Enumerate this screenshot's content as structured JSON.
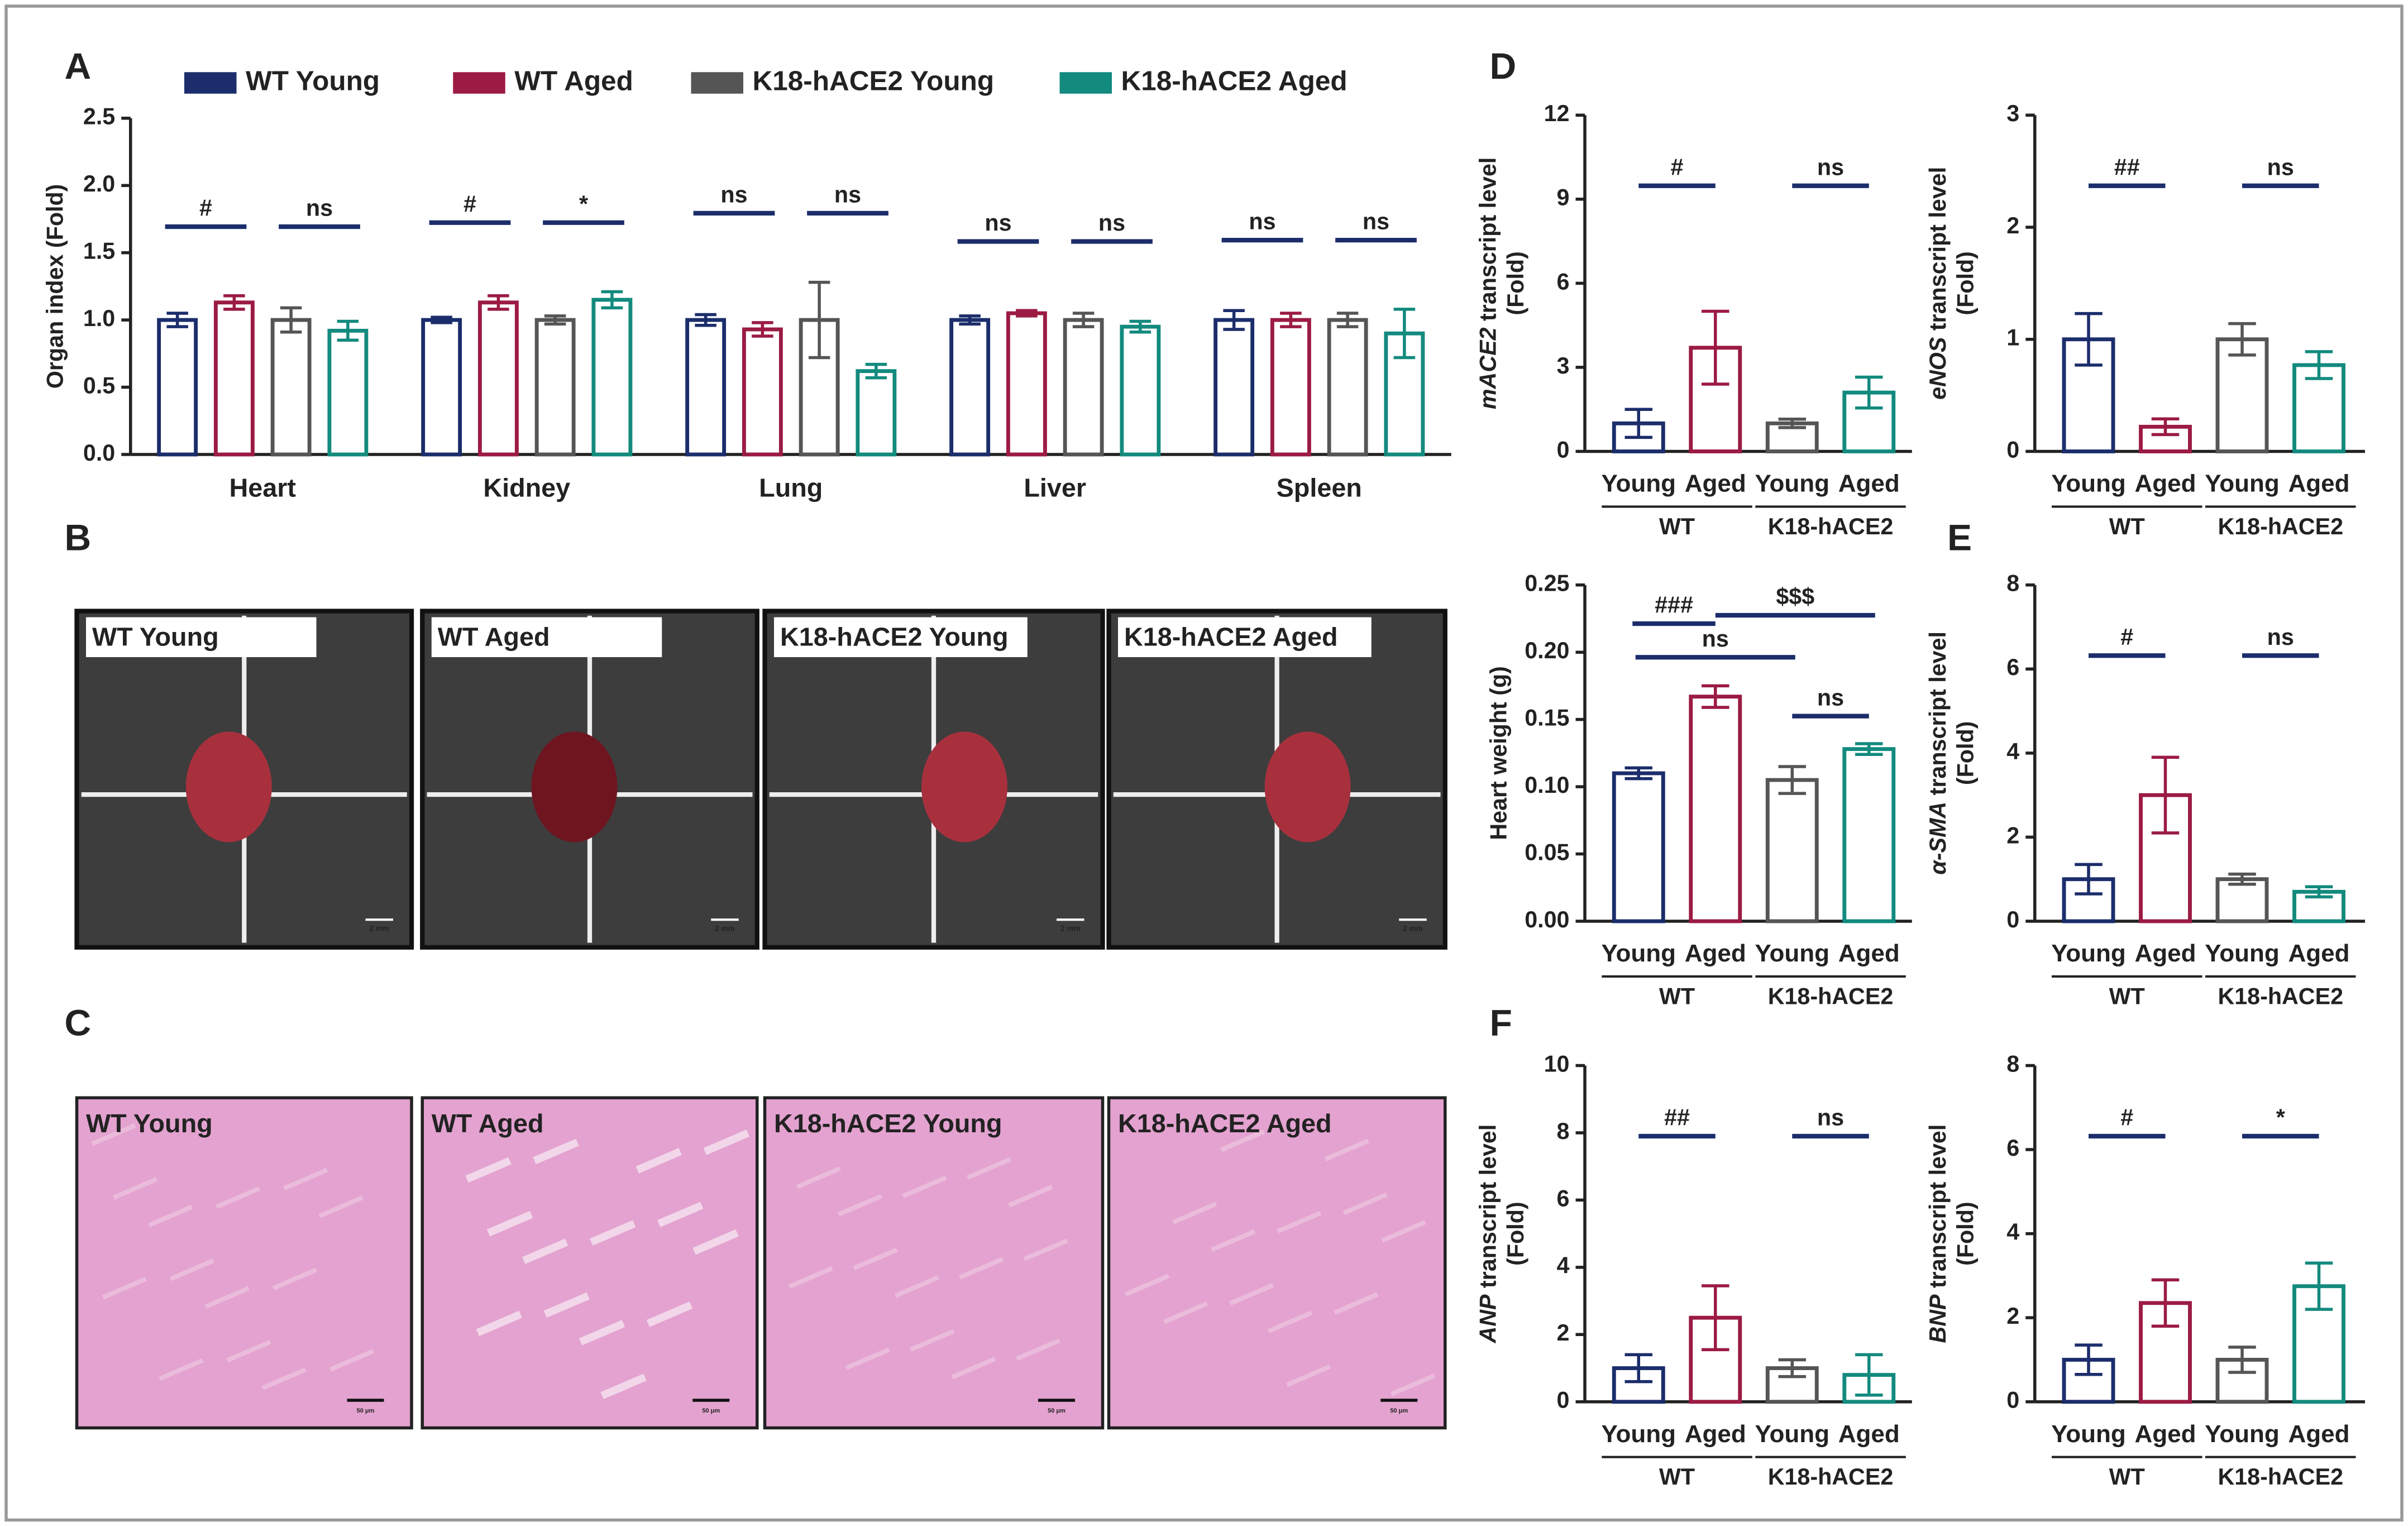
{
  "panels": [
    "A",
    "B",
    "C",
    "D",
    "E",
    "F"
  ],
  "chart_data": [
    {
      "type": "bar",
      "ylabel": "Organ index (Fold)",
      "categories": [
        "Heart",
        "Kidney",
        "Lung",
        "Liver",
        "Spleen"
      ],
      "series": [
        {
          "name": "WT Young",
          "color": "#1b2d6b",
          "values": [
            1.0,
            1.0,
            1.0,
            1.0,
            1.0
          ],
          "errors": [
            0.05,
            0.02,
            0.04,
            0.03,
            0.07
          ]
        },
        {
          "name": "WT Aged",
          "color": "#9b1b43",
          "values": [
            1.13,
            1.13,
            0.93,
            1.05,
            1.0
          ],
          "errors": [
            0.05,
            0.05,
            0.05,
            0.02,
            0.05
          ]
        },
        {
          "name": "K18-hACE2 Young",
          "color": "#555555",
          "values": [
            1.0,
            1.0,
            1.0,
            1.0,
            1.0
          ],
          "errors": [
            0.09,
            0.03,
            0.28,
            0.05,
            0.05
          ]
        },
        {
          "name": "K18-hACE2 Aged",
          "color": "#138a7e",
          "values": [
            0.92,
            1.15,
            0.62,
            0.95,
            0.9
          ],
          "errors": [
            0.07,
            0.06,
            0.05,
            0.04,
            0.18
          ]
        }
      ],
      "significance": [
        [
          "#",
          "ns"
        ],
        [
          "#",
          "*"
        ],
        [
          "ns",
          "ns"
        ],
        [
          "ns",
          "ns"
        ],
        [
          "ns",
          "ns"
        ]
      ],
      "ylim": [
        0,
        2.5
      ],
      "yticks": [
        {
          "value": 0,
          "label": "0.0"
        },
        0.5,
        {
          "value": 1,
          "label": "1.0"
        },
        1.5,
        {
          "value": 2,
          "label": "2.0"
        },
        2.5
      ]
    },
    {
      "type": "bar",
      "ylabel_gene": "mACE2",
      "ylabel": " transcript level",
      "ylabel_line2": "(Fold)",
      "categories": [
        "Young",
        "Aged",
        "Young",
        "Aged"
      ],
      "groups": [
        "WT",
        "K18-hACE2"
      ],
      "colors": [
        "#1b2d6b",
        "#9b1b43",
        "#555555",
        "#138a7e"
      ],
      "values": [
        1.0,
        3.7,
        1.0,
        2.1
      ],
      "errors": [
        0.5,
        1.3,
        0.15,
        0.55
      ],
      "significance": [
        "#",
        "ns"
      ],
      "ylim": [
        0,
        12
      ],
      "yticks": [
        0,
        3,
        6,
        9,
        12
      ]
    },
    {
      "type": "bar",
      "ylabel_gene": "eNOS",
      "ylabel": " transcript level",
      "ylabel_line2": "(Fold)",
      "categories": [
        "Young",
        "Aged",
        "Young",
        "Aged"
      ],
      "groups": [
        "WT",
        "K18-hACE2"
      ],
      "colors": [
        "#1b2d6b",
        "#9b1b43",
        "#555555",
        "#138a7e"
      ],
      "values": [
        1.0,
        0.22,
        1.0,
        0.77
      ],
      "errors": [
        0.23,
        0.07,
        0.14,
        0.12
      ],
      "significance": [
        "##",
        "ns"
      ],
      "ylim": [
        0,
        3
      ],
      "yticks": [
        0,
        1,
        2,
        3
      ]
    },
    {
      "type": "bar",
      "ylabel": "Heart weight (g)",
      "categories": [
        "Young",
        "Aged",
        "Young",
        "Aged"
      ],
      "groups": [
        "WT",
        "K18-hACE2"
      ],
      "colors": [
        "#1b2d6b",
        "#9b1b43",
        "#555555",
        "#138a7e"
      ],
      "values": [
        0.11,
        0.167,
        0.105,
        0.128
      ],
      "errors": [
        0.004,
        0.008,
        0.01,
        0.004
      ],
      "significance": [
        "###",
        "ns"
      ],
      "young_vs_young": "ns",
      "aged_vs_aged": "$$$",
      "ylim": [
        0,
        0.25
      ],
      "yticks": [
        {
          "value": 0,
          "label": "0.00"
        },
        0.05,
        {
          "value": 0.1,
          "label": "0.10"
        },
        0.15,
        {
          "value": 0.2,
          "label": "0.20"
        },
        0.25
      ]
    },
    {
      "type": "bar",
      "ylabel_gene": "α-SMA",
      "ylabel": " transcript level",
      "ylabel_line2": "(Fold)",
      "categories": [
        "Young",
        "Aged",
        "Young",
        "Aged"
      ],
      "groups": [
        "WT",
        "K18-hACE2"
      ],
      "colors": [
        "#1b2d6b",
        "#9b1b43",
        "#555555",
        "#138a7e"
      ],
      "values": [
        1.0,
        3.0,
        1.0,
        0.7
      ],
      "errors": [
        0.35,
        0.9,
        0.12,
        0.12
      ],
      "significance": [
        "#",
        "ns"
      ],
      "ylim": [
        0,
        8
      ],
      "yticks": [
        0,
        2,
        4,
        6,
        8
      ]
    },
    {
      "type": "bar",
      "ylabel_gene": "ANP",
      "ylabel": " transcript level",
      "ylabel_line2": "(Fold)",
      "categories": [
        "Young",
        "Aged",
        "Young",
        "Aged"
      ],
      "groups": [
        "WT",
        "K18-hACE2"
      ],
      "colors": [
        "#1b2d6b",
        "#9b1b43",
        "#555555",
        "#138a7e"
      ],
      "values": [
        1.0,
        2.5,
        1.0,
        0.8
      ],
      "errors": [
        0.4,
        0.95,
        0.25,
        0.6
      ],
      "significance": [
        "##",
        "ns"
      ],
      "ylim": [
        0,
        10
      ],
      "yticks": [
        0,
        2,
        4,
        6,
        8,
        10
      ]
    },
    {
      "type": "bar",
      "ylabel_gene": "BNP",
      "ylabel": " transcript level",
      "ylabel_line2": "(Fold)",
      "categories": [
        "Young",
        "Aged",
        "Young",
        "Aged"
      ],
      "groups": [
        "WT",
        "K18-hACE2"
      ],
      "colors": [
        "#1b2d6b",
        "#9b1b43",
        "#555555",
        "#138a7e"
      ],
      "values": [
        1.0,
        2.35,
        1.0,
        2.75
      ],
      "errors": [
        0.35,
        0.55,
        0.3,
        0.55
      ],
      "significance": [
        "#",
        "*"
      ],
      "ylim": [
        0,
        8
      ],
      "yticks": [
        0,
        2,
        4,
        6,
        8
      ]
    }
  ],
  "photos": {
    "gross": {
      "labels": [
        "WT Young",
        "WT Aged",
        "K18-hACE2 Young",
        "K18-hACE2 Aged"
      ],
      "scale_bar": "2 mm"
    },
    "histology": {
      "labels": [
        "WT Young",
        "WT Aged",
        "K18-hACE2 Young",
        "K18-hACE2 Aged"
      ],
      "scale_bar": "50 μm"
    }
  }
}
